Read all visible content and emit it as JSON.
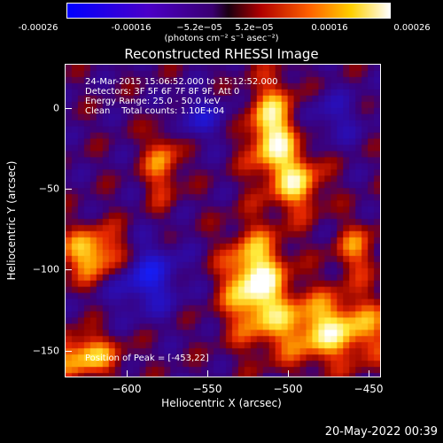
{
  "colorbar": {
    "ticks": [
      "-0.00026",
      "-0.00016",
      "−5.2e−05",
      "5.2e−05",
      "0.00016",
      "0.00026"
    ],
    "unit": "(photons cm⁻² s⁻¹ asec⁻²)"
  },
  "title": "Reconstructed RHESSI Image",
  "info": {
    "time": "24-Mar-2015 15:06:52.000 to 15:12:52.000",
    "detectors": "Detectors: 3F 5F 6F 7F 8F 9F, Att 0",
    "energy": "Energy Range: 25.0 - 50.0 keV",
    "clean": "Clean    Total counts: 1.10E+04"
  },
  "peak": "Position of Peak = [-453,22]",
  "axes": {
    "xlabel": "Heliocentric X (arcsec)",
    "ylabel": "Heliocentric Y (arcsec)",
    "xticks": [
      "−600",
      "−550",
      "−500",
      "−450"
    ],
    "yticks": [
      "0",
      "−50",
      "−100",
      "−150"
    ]
  },
  "timestamp": "20-May-2022 00:39"
}
